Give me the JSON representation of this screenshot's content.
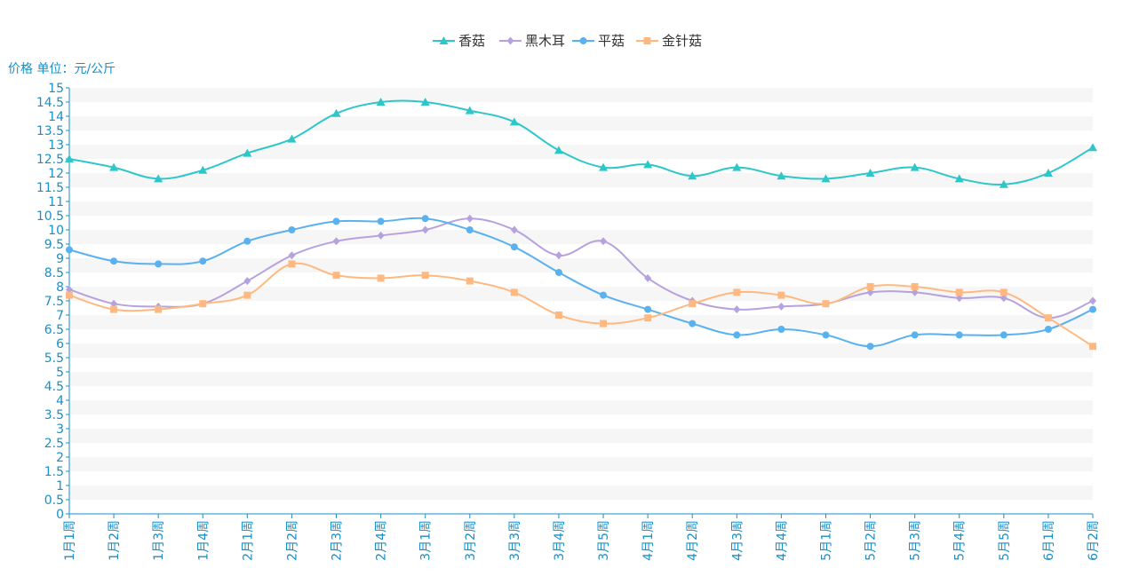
{
  "chart_data": {
    "type": "line",
    "ylabel": "价格 单位：元/公斤",
    "ylim": [
      0,
      15
    ],
    "ytick_step": 0.5,
    "grid": true,
    "legend_position": "top-center",
    "categories": [
      "1月1周",
      "1月2周",
      "1月3周",
      "1月4周",
      "2月1周",
      "2月2周",
      "2月3周",
      "2月4周",
      "3月1周",
      "3月2周",
      "3月3周",
      "3月4周",
      "3月5周",
      "4月1周",
      "4月2周",
      "4月3周",
      "4月4周",
      "5月1周",
      "5月2周",
      "5月3周",
      "5月4周",
      "5月5周",
      "6月1周",
      "6月2周"
    ],
    "series": [
      {
        "name": "香菇",
        "marker": "triangle",
        "color": "#2ec7c9",
        "values": [
          12.5,
          12.2,
          11.8,
          12.1,
          12.7,
          13.2,
          14.1,
          14.5,
          14.5,
          14.2,
          13.8,
          12.8,
          12.2,
          12.3,
          11.9,
          12.2,
          11.9,
          11.8,
          12.0,
          12.2,
          11.8,
          11.6,
          12.0,
          12.9
        ]
      },
      {
        "name": "黑木耳",
        "marker": "diamond",
        "color": "#b6a2de",
        "values": [
          7.9,
          7.4,
          7.3,
          7.4,
          8.2,
          9.1,
          9.6,
          9.8,
          10.0,
          10.4,
          10.0,
          9.1,
          9.6,
          8.3,
          7.5,
          7.2,
          7.3,
          7.4,
          7.8,
          7.8,
          7.6,
          7.6,
          6.9,
          7.5
        ]
      },
      {
        "name": "平菇",
        "marker": "circle",
        "color": "#5ab1ef",
        "values": [
          9.3,
          8.9,
          8.8,
          8.9,
          9.6,
          10.0,
          10.3,
          10.3,
          10.4,
          10.0,
          9.4,
          8.5,
          7.7,
          7.2,
          6.7,
          6.3,
          6.5,
          6.3,
          5.9,
          6.3,
          6.3,
          6.3,
          6.5,
          7.2
        ]
      },
      {
        "name": "金针菇",
        "marker": "square",
        "color": "#ffb980",
        "values": [
          7.7,
          7.2,
          7.2,
          7.4,
          7.7,
          8.8,
          8.4,
          8.3,
          8.4,
          8.2,
          7.8,
          7.0,
          6.7,
          6.9,
          7.4,
          7.8,
          7.7,
          7.4,
          8.0,
          8.0,
          7.8,
          7.8,
          6.9,
          5.9
        ]
      }
    ]
  }
}
